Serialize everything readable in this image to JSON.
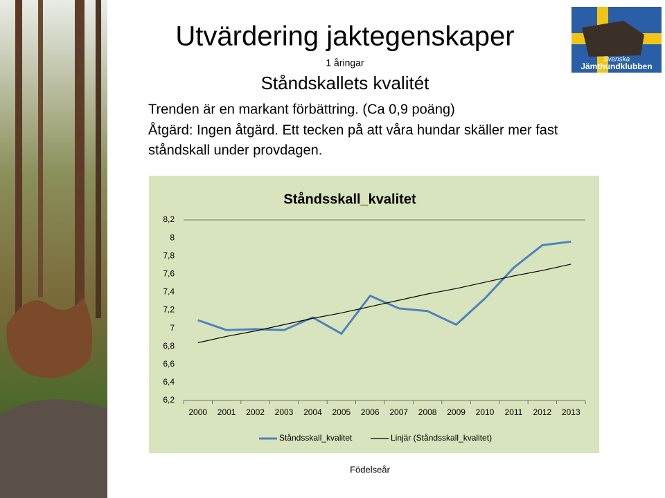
{
  "slide": {
    "title": "Utvärdering jaktegenskaper",
    "subtitle": "1 åringar",
    "heading": "Ståndskallets kvalitét",
    "body_lines": [
      "Trenden är en markant förbättring. (Ca 0,9 poäng)",
      "Åtgärd: Ingen åtgärd. Ett tecken på att våra hundar skäller mer fast",
      "ståndskall under provdagen."
    ],
    "logo_lines": [
      "Svenska",
      "Jämthundklubben"
    ]
  },
  "chart_data": {
    "type": "line",
    "title": "Ståndsskall_kvalitet",
    "x_label": "Födelseår",
    "categories": [
      "2000",
      "2001",
      "2002",
      "2003",
      "2004",
      "2005",
      "2006",
      "2007",
      "2008",
      "2009",
      "2010",
      "2011",
      "2012",
      "2013"
    ],
    "series": [
      {
        "name": "Ståndsskall_kvalitet",
        "color": "#4f81bd",
        "values": [
          7.09,
          6.98,
          6.99,
          6.98,
          7.12,
          6.94,
          7.36,
          7.22,
          7.19,
          7.04,
          7.33,
          7.67,
          7.92,
          7.96
        ]
      },
      {
        "name": "Linjär (Ståndsskall_kvalitet)",
        "color": "#000000",
        "values": [
          6.84,
          6.91,
          6.97,
          7.04,
          7.11,
          7.17,
          7.24,
          7.31,
          7.38,
          7.44,
          7.51,
          7.58,
          7.64,
          7.71
        ]
      }
    ],
    "ylim": [
      6.2,
      8.2
    ],
    "yticks": [
      {
        "value": 6.2,
        "label": "6,2"
      },
      {
        "value": 6.4,
        "label": "6,4"
      },
      {
        "value": 6.6,
        "label": "6,6"
      },
      {
        "value": 6.8,
        "label": "6,8"
      },
      7,
      {
        "value": 7.2,
        "label": "7,2"
      },
      {
        "value": 7.4,
        "label": "7,4"
      },
      {
        "value": 7.6,
        "label": "7,6"
      },
      {
        "value": 7.8,
        "label": "7,8"
      },
      8,
      {
        "value": 8.2,
        "label": "8,2"
      }
    ],
    "legend": "bottom",
    "grid": false
  }
}
